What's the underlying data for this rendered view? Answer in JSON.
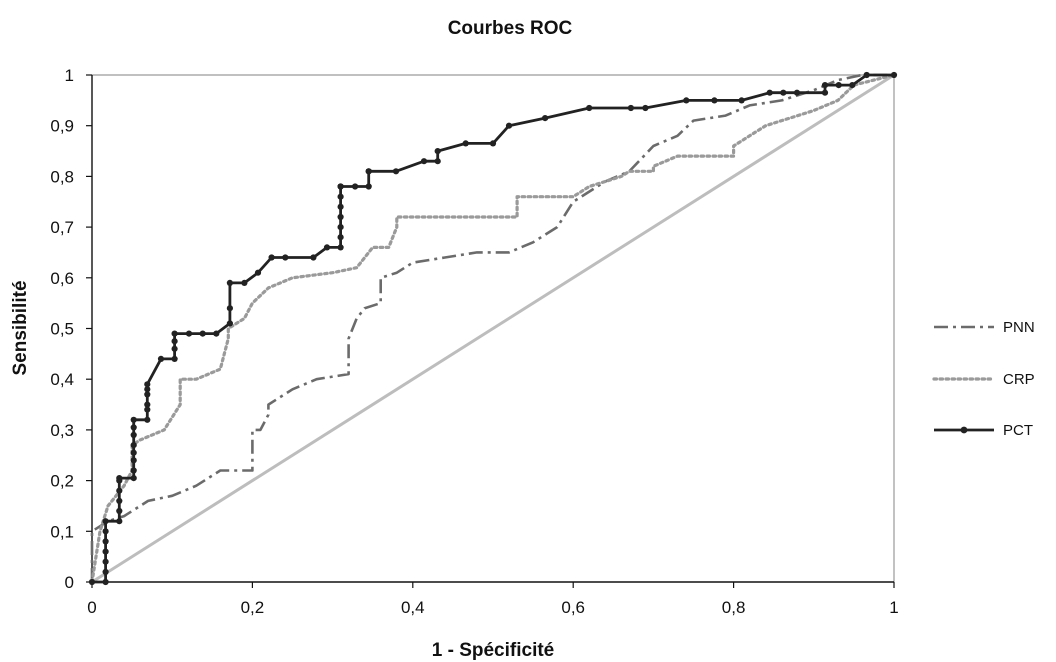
{
  "chart_data": {
    "type": "line",
    "title": "Courbes ROC",
    "xlabel": "1 - Spécificité",
    "ylabel": "Sensibilité",
    "xlim": [
      0,
      1
    ],
    "ylim": [
      0,
      1
    ],
    "x_ticks": [
      "0",
      "0,2",
      "0,4",
      "0,6",
      "0,8",
      "1"
    ],
    "y_ticks": [
      "0",
      "0,1",
      "0,2",
      "0,3",
      "0,4",
      "0,5",
      "0,6",
      "0,7",
      "0,8",
      "0,9",
      "1"
    ],
    "x_tick_values": [
      0,
      0.2,
      0.4,
      0.6,
      0.8,
      1
    ],
    "y_tick_values": [
      0,
      0.1,
      0.2,
      0.3,
      0.4,
      0.5,
      0.6,
      0.7,
      0.8,
      0.9,
      1
    ],
    "legend_position": "right",
    "grid": false,
    "series": [
      {
        "name": "PNN",
        "color": "#6b6b6b",
        "style": "dash-dot",
        "x": [
          0,
          0,
          0.02,
          0.04,
          0.07,
          0.1,
          0.13,
          0.16,
          0.2,
          0.2,
          0.21,
          0.22,
          0.22,
          0.25,
          0.28,
          0.32,
          0.32,
          0.33,
          0.34,
          0.36,
          0.36,
          0.38,
          0.4,
          0.44,
          0.48,
          0.52,
          0.55,
          0.58,
          0.6,
          0.61,
          0.64,
          0.67,
          0.7,
          0.73,
          0.75,
          0.79,
          0.82,
          0.86,
          0.9,
          0.93,
          0.96,
          1
        ],
        "y": [
          0,
          0.1,
          0.12,
          0.13,
          0.16,
          0.17,
          0.19,
          0.22,
          0.22,
          0.3,
          0.3,
          0.33,
          0.35,
          0.38,
          0.4,
          0.41,
          0.48,
          0.52,
          0.54,
          0.55,
          0.6,
          0.61,
          0.63,
          0.64,
          0.65,
          0.65,
          0.67,
          0.7,
          0.75,
          0.76,
          0.79,
          0.81,
          0.86,
          0.88,
          0.91,
          0.92,
          0.94,
          0.95,
          0.97,
          0.99,
          1,
          1
        ]
      },
      {
        "name": "CRP",
        "color": "#9a9a9a",
        "style": "dotted",
        "x": [
          0,
          0.005,
          0.01,
          0.02,
          0.03,
          0.04,
          0.05,
          0.05,
          0.06,
          0.09,
          0.11,
          0.11,
          0.13,
          0.16,
          0.17,
          0.17,
          0.19,
          0.2,
          0.22,
          0.25,
          0.3,
          0.33,
          0.35,
          0.37,
          0.38,
          0.38,
          0.45,
          0.53,
          0.53,
          0.6,
          0.62,
          0.64,
          0.66,
          0.67,
          0.7,
          0.7,
          0.73,
          0.77,
          0.8,
          0.8,
          0.82,
          0.84,
          0.86,
          0.88,
          0.9,
          0.93,
          0.95,
          1
        ],
        "y": [
          0,
          0.05,
          0.1,
          0.15,
          0.17,
          0.19,
          0.22,
          0.27,
          0.28,
          0.3,
          0.35,
          0.4,
          0.4,
          0.42,
          0.48,
          0.5,
          0.52,
          0.55,
          0.58,
          0.6,
          0.61,
          0.62,
          0.66,
          0.66,
          0.7,
          0.72,
          0.72,
          0.72,
          0.76,
          0.76,
          0.78,
          0.79,
          0.8,
          0.81,
          0.81,
          0.82,
          0.84,
          0.84,
          0.84,
          0.86,
          0.88,
          0.9,
          0.91,
          0.92,
          0.93,
          0.95,
          0.98,
          1
        ]
      },
      {
        "name": "PCT",
        "color": "#222222",
        "style": "solid-markers",
        "x": [
          0,
          0.017,
          0.017,
          0.017,
          0.017,
          0.017,
          0.017,
          0.017,
          0.034,
          0.034,
          0.034,
          0.034,
          0.034,
          0.034,
          0.052,
          0.052,
          0.052,
          0.052,
          0.052,
          0.052,
          0.052,
          0.052,
          0.069,
          0.069,
          0.069,
          0.069,
          0.069,
          0.069,
          0.086,
          0.103,
          0.103,
          0.103,
          0.103,
          0.121,
          0.138,
          0.155,
          0.172,
          0.172,
          0.172,
          0.19,
          0.207,
          0.224,
          0.241,
          0.276,
          0.293,
          0.31,
          0.31,
          0.31,
          0.31,
          0.31,
          0.31,
          0.31,
          0.31,
          0.328,
          0.345,
          0.345,
          0.345,
          0.379,
          0.414,
          0.431,
          0.431,
          0.466,
          0.5,
          0.52,
          0.565,
          0.62,
          0.672,
          0.69,
          0.741,
          0.776,
          0.81,
          0.845,
          0.862,
          0.879,
          0.914,
          0.914,
          0.931,
          0.948,
          0.966,
          1
        ],
        "y": [
          0,
          0,
          0.02,
          0.04,
          0.06,
          0.08,
          0.1,
          0.12,
          0.12,
          0.14,
          0.16,
          0.18,
          0.2,
          0.205,
          0.205,
          0.22,
          0.24,
          0.255,
          0.27,
          0.29,
          0.305,
          0.32,
          0.32,
          0.34,
          0.35,
          0.37,
          0.38,
          0.39,
          0.44,
          0.44,
          0.46,
          0.475,
          0.49,
          0.49,
          0.49,
          0.49,
          0.51,
          0.54,
          0.59,
          0.59,
          0.61,
          0.64,
          0.64,
          0.64,
          0.66,
          0.66,
          0.68,
          0.7,
          0.72,
          0.74,
          0.76,
          0.78,
          0.78,
          0.78,
          0.78,
          0.81,
          0.81,
          0.81,
          0.83,
          0.83,
          0.85,
          0.865,
          0.865,
          0.9,
          0.915,
          0.935,
          0.935,
          0.935,
          0.95,
          0.95,
          0.95,
          0.965,
          0.965,
          0.965,
          0.965,
          0.98,
          0.98,
          0.98,
          1,
          1
        ]
      }
    ],
    "reference_line": {
      "x": [
        0,
        1
      ],
      "y": [
        0,
        1
      ],
      "color": "#bdbdbd"
    }
  }
}
